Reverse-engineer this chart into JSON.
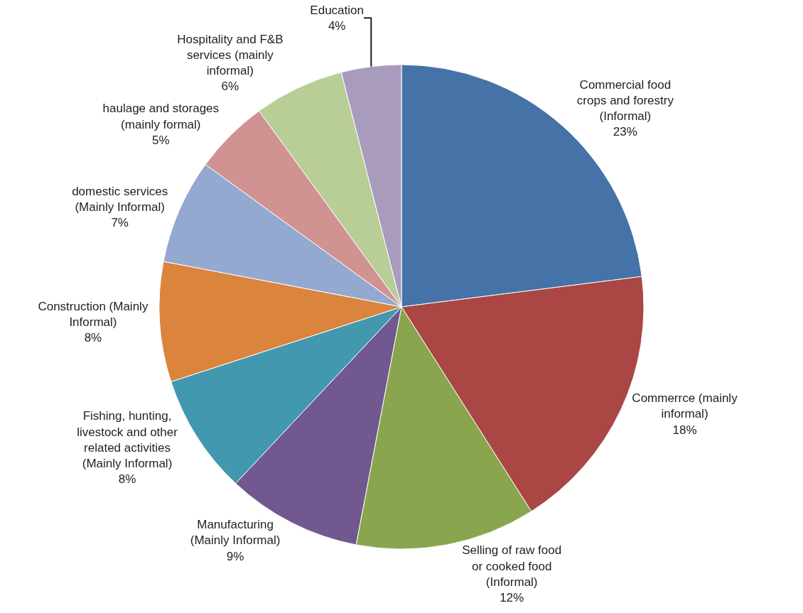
{
  "chart_data": {
    "type": "pie",
    "categories": [
      "Commercial food crops and forestry (Informal)",
      "Commerrce (mainly informal)",
      "Selling of raw food or cooked food (Informal)",
      "Manufacturing (Mainly Informal)",
      "Fishing, hunting, livestock and other related activities (Mainly Informal)",
      "Construction (Mainly Informal)",
      "domestic services (Mainly Informal)",
      "haulage and storages (mainly formal)",
      "Hospitality and F&B services (mainly informal)",
      "Education"
    ],
    "values": [
      23,
      18,
      12,
      9,
      8,
      8,
      7,
      5,
      6,
      4
    ],
    "value_labels": [
      "23%",
      "18%",
      "12%",
      "9%",
      "8%",
      "8%",
      "7%",
      "5%",
      "6%",
      "4%"
    ],
    "colors": [
      "#4572a7",
      "#aa4643",
      "#89a54e",
      "#71588f",
      "#4198af",
      "#db843d",
      "#93a9cf",
      "#d19392",
      "#b9cd96",
      "#a99bbd"
    ],
    "legend": false
  }
}
